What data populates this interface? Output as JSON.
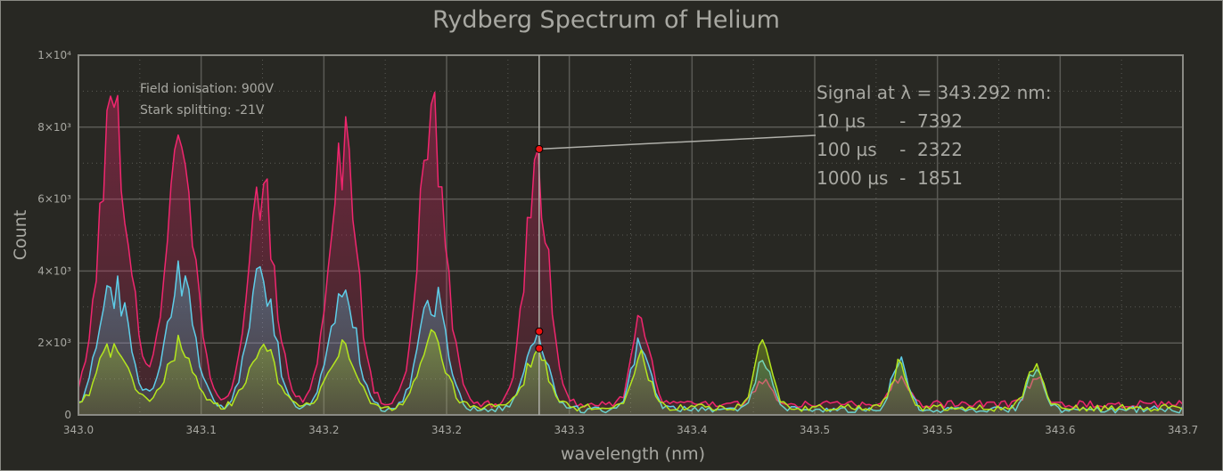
{
  "chart_data": {
    "type": "area",
    "title": "Rydberg Spectrum of Helium",
    "xlabel": "wavelength (nm)",
    "ylabel": "Count",
    "xlim": [
      343.0,
      343.7
    ],
    "ylim": [
      0,
      10000
    ],
    "x_tick_labels": [
      "343.0",
      "343.1",
      "343.2",
      "343.2",
      "343.3",
      "343.4",
      "343.5",
      "343.5",
      "343.6",
      "343.7"
    ],
    "y_tick_labels": [
      "0",
      "2×10³",
      "4×10³",
      "6×10³",
      "8×10³",
      "1×10⁴"
    ],
    "y_tick_values": [
      0,
      2000,
      4000,
      6000,
      8000,
      10000
    ],
    "grid": true,
    "legend": "none",
    "peak_x_nm": [
      343.0225,
      343.0645,
      343.116,
      343.1675,
      343.2245,
      343.2905,
      343.3565,
      343.434,
      343.5205,
      343.6065
    ],
    "series": [
      {
        "name": "10 µs",
        "color": "#f0266e",
        "peak_heights": [
          8900,
          7900,
          6950,
          8250,
          8950,
          7392,
          2900,
          1100,
          1200,
          1150
        ],
        "baseline": 300
      },
      {
        "name": "100 µs",
        "color": "#5ecde8",
        "peak_heights": [
          3900,
          4200,
          4150,
          3750,
          3600,
          2322,
          2250,
          1700,
          1600,
          1450
        ],
        "baseline": 150
      },
      {
        "name": "1000 µs",
        "color": "#b4e61e",
        "peak_heights": [
          2150,
          2050,
          2050,
          2100,
          2300,
          1851,
          1850,
          2350,
          1550,
          1700
        ],
        "baseline": 200
      }
    ],
    "annotations": {
      "settings": [
        "Field ionisation: 900V",
        "Stark splitting: -21V"
      ],
      "cursor": {
        "x_nm": 343.292,
        "header": "Signal at λ = 343.292 nm:",
        "rows": [
          "10 µs      -  7392",
          "100 µs    -  2322",
          "1000 µs  -  1851"
        ],
        "values": [
          7392,
          2322,
          1851
        ]
      }
    }
  }
}
